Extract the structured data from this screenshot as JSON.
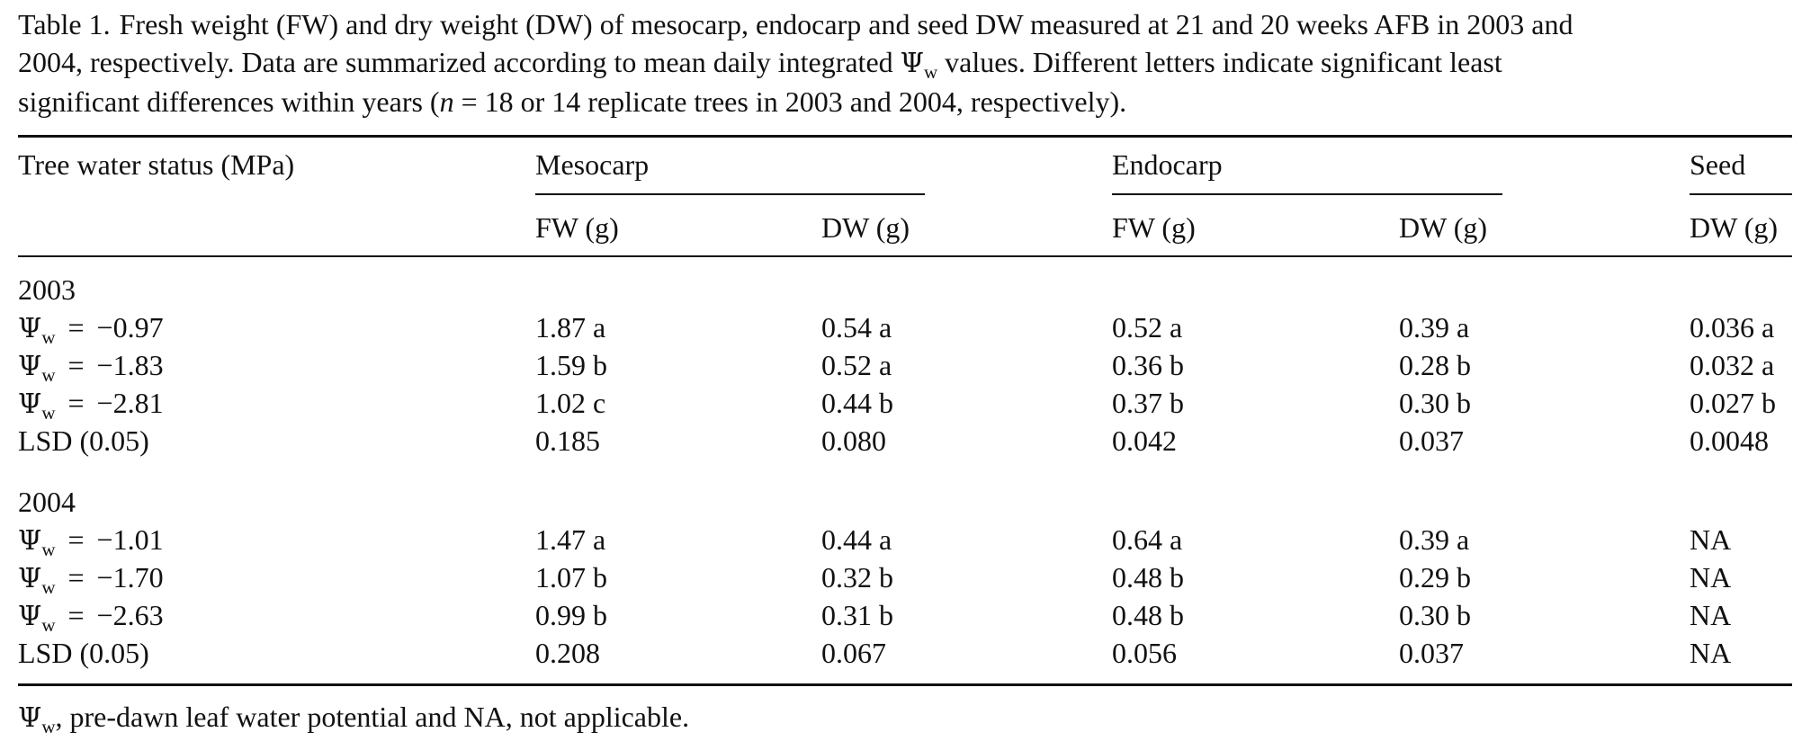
{
  "caption": {
    "label": "Table 1.",
    "line1": "Fresh weight (FW) and dry weight (DW) of mesocarp, endocarp and seed DW measured at 21 and 20 weeks AFB in 2003 and",
    "line2_before": "2004, respectively. Data are summarized according to mean daily integrated ",
    "psi_symbol": "Ψ",
    "psi_sub": "w",
    "line2_after": " values. Different letters indicate significant least",
    "line3_before": "significant differences within years (",
    "n_symbol": "n",
    "line3_after": " = 18 or 14 replicate trees in 2003 and 2004, respectively)."
  },
  "header": {
    "row_label": "Tree water status (MPa)",
    "groups": [
      "Mesocarp",
      "Endocarp",
      "Seed"
    ],
    "subcolumns": [
      "FW (g)",
      "DW (g)",
      "FW (g)",
      "DW (g)",
      "DW (g)"
    ]
  },
  "sections": [
    {
      "year": "2003",
      "rows": [
        {
          "psi": "Ψ",
          "sub": "w",
          "eq": "=",
          "value": "−0.97",
          "cells": [
            "1.87 a",
            "0.54 a",
            "0.52 a",
            "0.39 a",
            "0.036 a"
          ]
        },
        {
          "psi": "Ψ",
          "sub": "w",
          "eq": "=",
          "value": "−1.83",
          "cells": [
            "1.59 b",
            "0.52 a",
            "0.36 b",
            "0.28 b",
            "0.032 a"
          ]
        },
        {
          "psi": "Ψ",
          "sub": "w",
          "eq": "=",
          "value": "−2.81",
          "cells": [
            "1.02 c",
            "0.44 b",
            "0.37 b",
            "0.30 b",
            "0.027 b"
          ]
        }
      ],
      "lsd": {
        "label": "LSD (0.05)",
        "cells": [
          "0.185",
          "0.080",
          "0.042",
          "0.037",
          "0.0048"
        ]
      }
    },
    {
      "year": "2004",
      "rows": [
        {
          "psi": "Ψ",
          "sub": "w",
          "eq": "=",
          "value": "−1.01",
          "cells": [
            "1.47 a",
            "0.44 a",
            "0.64 a",
            "0.39 a",
            "NA"
          ]
        },
        {
          "psi": "Ψ",
          "sub": "w",
          "eq": "=",
          "value": "−1.70",
          "cells": [
            "1.07 b",
            "0.32 b",
            "0.48 b",
            "0.29 b",
            "NA"
          ]
        },
        {
          "psi": "Ψ",
          "sub": "w",
          "eq": "=",
          "value": "−2.63",
          "cells": [
            "0.99 b",
            "0.31 b",
            "0.48 b",
            "0.30 b",
            "NA"
          ]
        }
      ],
      "lsd": {
        "label": "LSD (0.05)",
        "cells": [
          "0.208",
          "0.067",
          "0.056",
          "0.037",
          "NA"
        ]
      }
    }
  ],
  "footnote": {
    "psi": "Ψ",
    "sub": "w",
    "text": ", pre-dawn leaf water potential and NA, not applicable."
  }
}
